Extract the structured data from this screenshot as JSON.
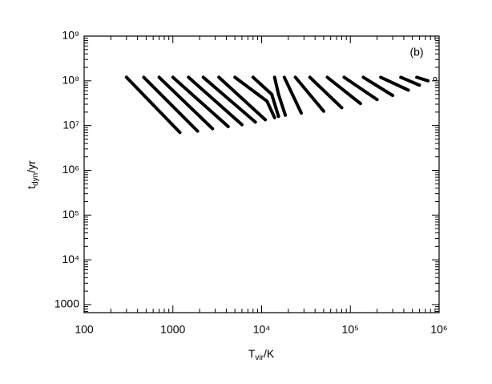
{
  "chart_data": {
    "type": "line",
    "log_x": true,
    "log_y": true,
    "color": "#000000",
    "annotation": "(b)",
    "xlabel": {
      "main": "T",
      "sub": "vir",
      "rest": "/K"
    },
    "ylabel": {
      "main": "t",
      "sub": "dyn",
      "rest": "/yr"
    },
    "xlim": [
      100,
      1000000
    ],
    "ylim": [
      660,
      1000000000
    ],
    "xticks": [
      100,
      1000,
      {
        "value": 10000,
        "label": "10⁴"
      },
      {
        "value": 100000,
        "label": "10⁵"
      },
      {
        "value": 1000000,
        "label": "10⁶"
      }
    ],
    "yticks": [
      1000,
      {
        "value": 10000,
        "label": "10⁴"
      },
      {
        "value": 100000,
        "label": "10⁵"
      },
      {
        "value": 1000000,
        "label": "10⁶"
      },
      {
        "value": 10000000,
        "label": "10⁷"
      },
      {
        "value": 100000000,
        "label": "10⁸"
      },
      {
        "value": 1000000000,
        "label": "10⁹"
      }
    ],
    "series": [
      {
        "x": [
          300,
          1200
        ],
        "values": [
          120000000,
          7000000
        ]
      },
      {
        "x": [
          470,
          1900
        ],
        "values": [
          120000000,
          7500000
        ]
      },
      {
        "x": [
          700,
          2800
        ],
        "values": [
          120000000,
          8500000
        ]
      },
      {
        "x": [
          1000,
          4200
        ],
        "values": [
          120000000,
          9500000
        ]
      },
      {
        "x": [
          1500,
          6000
        ],
        "values": [
          120000000,
          10500000
        ]
      },
      {
        "x": [
          2200,
          8500
        ],
        "values": [
          120000000,
          12000000
        ]
      },
      {
        "x": [
          3300,
          11000
        ],
        "values": [
          120000000,
          13500000
        ]
      },
      {
        "x": [
          5000,
          11500,
          14000
        ],
        "values": [
          120000000,
          35000000,
          15000000
        ]
      },
      {
        "x": [
          8000,
          13000,
          15500
        ],
        "values": [
          120000000,
          50000000,
          16000000
        ]
      },
      {
        "x": [
          14000,
          15500,
          18500
        ],
        "values": [
          120000000,
          50000000,
          17000000
        ]
      },
      {
        "x": [
          18000,
          28000
        ],
        "values": [
          120000000,
          19000000
        ]
      },
      {
        "x": [
          24000,
          50000
        ],
        "values": [
          120000000,
          21000000
        ]
      },
      {
        "x": [
          35000,
          80000
        ],
        "values": [
          120000000,
          25000000
        ]
      },
      {
        "x": [
          55000,
          130000
        ],
        "values": [
          120000000,
          31000000
        ]
      },
      {
        "x": [
          85000,
          200000
        ],
        "values": [
          120000000,
          38000000
        ]
      },
      {
        "x": [
          140000,
          300000
        ],
        "values": [
          120000000,
          47000000
        ]
      },
      {
        "x": [
          220000,
          450000
        ],
        "values": [
          120000000,
          62000000
        ]
      },
      {
        "x": [
          370000,
          600000
        ],
        "values": [
          120000000,
          80000000
        ]
      },
      {
        "x": [
          560000,
          750000
        ],
        "values": [
          120000000,
          100000000
        ]
      },
      {
        "x": [
          900000
        ],
        "values": [
          110000000
        ]
      }
    ]
  }
}
